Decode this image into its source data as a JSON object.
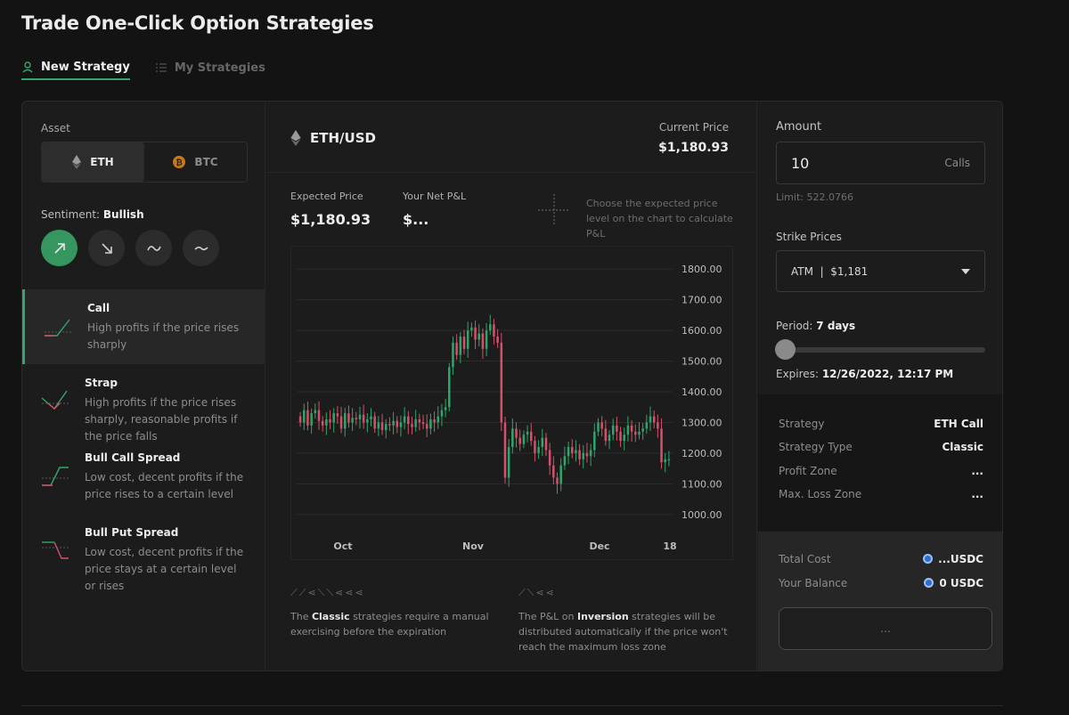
{
  "page": {
    "title": "Trade One-Click Option Strategies"
  },
  "tabs": [
    {
      "label": "New Strategy",
      "active": true
    },
    {
      "label": "My Strategies",
      "active": false
    }
  ],
  "asset": {
    "label": "Asset",
    "options": [
      {
        "label": "ETH",
        "icon": "ethereum-icon",
        "active": true
      },
      {
        "label": "BTC",
        "icon": "bitcoin-icon",
        "active": false
      }
    ]
  },
  "sentiment": {
    "label": "Sentiment:",
    "value": "Bullish",
    "options": [
      {
        "icon": "arrow-up-right-icon",
        "active": true
      },
      {
        "icon": "arrow-down-right-icon",
        "active": false
      },
      {
        "icon": "wave-icon",
        "active": false
      },
      {
        "icon": "tilde-icon",
        "active": false
      }
    ]
  },
  "strategies": [
    {
      "name": "Call",
      "desc": "High profits if the price rises sharply",
      "active": true
    },
    {
      "name": "Strap",
      "desc": "High profits if the price rises sharply, reasonable profits if the price falls",
      "active": false
    },
    {
      "name": "Bull Call Spread",
      "desc": "Low cost, decent profits if the price rises to a certain level",
      "active": false
    },
    {
      "name": "Bull Put Spread",
      "desc": "Low cost, decent profits if the price stays at a certain level or rises",
      "active": false
    }
  ],
  "market": {
    "pair": "ETH/USD",
    "current_price_label": "Current Price",
    "current_price": "$1,180.93",
    "expected_price_label": "Expected Price",
    "expected_price": "$1,180.93",
    "net_pnl_label": "Your Net P&L",
    "net_pnl": "$...",
    "hint": "Choose the expected price level on the chart to calculate P&L"
  },
  "chart_data": {
    "type": "candlestick",
    "title": "",
    "xlabel": "",
    "ylabel": "",
    "ylim": [
      950,
      1850
    ],
    "y_ticks": [
      "1800.00",
      "1700.00",
      "1600.00",
      "1500.00",
      "1400.00",
      "1300.00",
      "1200.00",
      "1100.00",
      "1000.00"
    ],
    "x_ticks": [
      "Oct",
      "Nov",
      "Dec",
      "18"
    ],
    "grid": true,
    "series": [
      {
        "values": [
          [
            1320,
            1300
          ],
          [
            1300,
            1340
          ],
          [
            1340,
            1290
          ],
          [
            1290,
            1330
          ],
          [
            1330,
            1340
          ],
          [
            1340,
            1305
          ],
          [
            1305,
            1290
          ],
          [
            1290,
            1310
          ],
          [
            1310,
            1300
          ],
          [
            1300,
            1330
          ],
          [
            1330,
            1320
          ],
          [
            1320,
            1280
          ],
          [
            1280,
            1330
          ],
          [
            1330,
            1300
          ],
          [
            1300,
            1315
          ],
          [
            1315,
            1310
          ],
          [
            1310,
            1325
          ],
          [
            1325,
            1300
          ],
          [
            1300,
            1310
          ],
          [
            1310,
            1320
          ],
          [
            1320,
            1280
          ],
          [
            1280,
            1300
          ],
          [
            1300,
            1275
          ],
          [
            1275,
            1295
          ],
          [
            1295,
            1290
          ],
          [
            1290,
            1305
          ],
          [
            1305,
            1285
          ],
          [
            1285,
            1300
          ],
          [
            1300,
            1320
          ],
          [
            1320,
            1295
          ],
          [
            1295,
            1285
          ],
          [
            1285,
            1310
          ],
          [
            1310,
            1300
          ],
          [
            1300,
            1295
          ],
          [
            1295,
            1280
          ],
          [
            1280,
            1310
          ],
          [
            1310,
            1300
          ],
          [
            1300,
            1320
          ],
          [
            1320,
            1340
          ],
          [
            1340,
            1350
          ],
          [
            1350,
            1480
          ],
          [
            1480,
            1560
          ],
          [
            1560,
            1520
          ],
          [
            1520,
            1580
          ],
          [
            1580,
            1540
          ],
          [
            1540,
            1600
          ],
          [
            1600,
            1610
          ],
          [
            1610,
            1570
          ],
          [
            1570,
            1590
          ],
          [
            1590,
            1540
          ],
          [
            1540,
            1600
          ],
          [
            1600,
            1620
          ],
          [
            1620,
            1580
          ],
          [
            1580,
            1560
          ],
          [
            1560,
            1300
          ],
          [
            1300,
            1120
          ],
          [
            1120,
            1220
          ],
          [
            1220,
            1280
          ],
          [
            1280,
            1250
          ],
          [
            1250,
            1230
          ],
          [
            1230,
            1260
          ],
          [
            1260,
            1270
          ],
          [
            1270,
            1240
          ],
          [
            1240,
            1200
          ],
          [
            1200,
            1220
          ],
          [
            1220,
            1250
          ],
          [
            1250,
            1210
          ],
          [
            1210,
            1160
          ],
          [
            1160,
            1120
          ],
          [
            1120,
            1100
          ],
          [
            1100,
            1160
          ],
          [
            1160,
            1190
          ],
          [
            1190,
            1220
          ],
          [
            1220,
            1200
          ],
          [
            1200,
            1210
          ],
          [
            1210,
            1180
          ],
          [
            1180,
            1200
          ],
          [
            1200,
            1190
          ],
          [
            1190,
            1210
          ],
          [
            1210,
            1270
          ],
          [
            1270,
            1300
          ],
          [
            1300,
            1280
          ],
          [
            1280,
            1240
          ],
          [
            1240,
            1260
          ],
          [
            1260,
            1290
          ],
          [
            1290,
            1270
          ],
          [
            1270,
            1240
          ],
          [
            1240,
            1260
          ],
          [
            1260,
            1290
          ],
          [
            1290,
            1270
          ],
          [
            1270,
            1260
          ],
          [
            1260,
            1270
          ],
          [
            1270,
            1280
          ],
          [
            1280,
            1300
          ],
          [
            1300,
            1320
          ],
          [
            1320,
            1300
          ],
          [
            1300,
            1280
          ],
          [
            1280,
            1170
          ],
          [
            1170,
            1180
          ],
          [
            1180,
            1180
          ]
        ]
      }
    ]
  },
  "notes": {
    "classic": {
      "pre": "The ",
      "bold": "Classic",
      "post": " strategies require a manual exercising before the expiration"
    },
    "inversion": {
      "pre": "The P&L on ",
      "bold": "Inversion",
      "post": " strategies will be distributed automatically if the price won't reach the maximum loss zone"
    }
  },
  "order": {
    "amount_label": "Amount",
    "amount_value": "10",
    "amount_unit": "Calls",
    "limit": "Limit: 522.0766",
    "strike_label": "Strike Prices",
    "strike_value": "ATM  |  $1,181",
    "period_label": "Period:",
    "period_value": "7 days",
    "period_fraction": 0.0,
    "expires_label": "Expires:",
    "expires_value": "12/26/2022, 12:17 PM"
  },
  "summary": [
    {
      "k": "Strategy",
      "v": "ETH Call"
    },
    {
      "k": "Strategy Type",
      "v": "Classic"
    },
    {
      "k": "Profit Zone",
      "v": "..."
    },
    {
      "k": "Max. Loss Zone",
      "v": "..."
    }
  ],
  "cost": {
    "total_label": "Total Cost",
    "total_value": "...USDC",
    "balance_label": "Your Balance",
    "balance_value": "0 USDC",
    "button_label": "..."
  },
  "colors": {
    "accent": "#36a46b",
    "up": "#2ea56b",
    "down": "#d4506c"
  }
}
